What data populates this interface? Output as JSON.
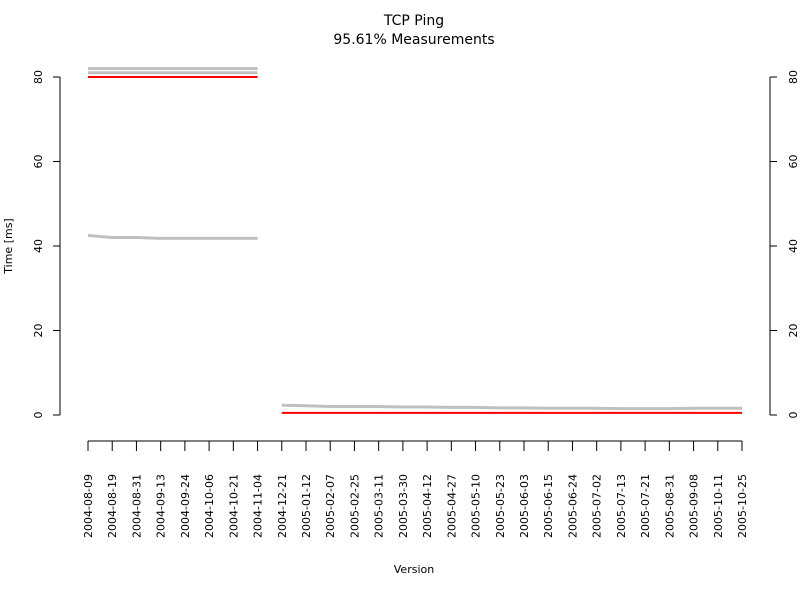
{
  "chart_data": {
    "type": "line",
    "title": "TCP Ping",
    "subtitle": "95.61% Measurements",
    "x_label": "Version",
    "y_label": "Time [ms]",
    "categories": [
      "2004-08-09",
      "2004-08-19",
      "2004-08-31",
      "2004-09-13",
      "2004-09-24",
      "2004-10-06",
      "2004-10-21",
      "2004-11-04",
      "2004-12-21",
      "2005-01-12",
      "2005-02-07",
      "2005-02-25",
      "2005-03-11",
      "2005-03-30",
      "2005-04-12",
      "2005-04-27",
      "2005-05-10",
      "2005-05-23",
      "2005-06-03",
      "2005-06-15",
      "2005-06-24",
      "2005-07-02",
      "2005-07-13",
      "2005-07-21",
      "2005-08-31",
      "2005-09-08",
      "2005-10-11",
      "2005-10-25"
    ],
    "series": [
      {
        "color": "#c0c0c0",
        "values": [
          82,
          82,
          82,
          82,
          82,
          82,
          82,
          82,
          null,
          null,
          null,
          null,
          null,
          null,
          null,
          null,
          null,
          null,
          null,
          null,
          null,
          null,
          null,
          null,
          null,
          null,
          null,
          null
        ]
      },
      {
        "color": "#c0c0c0",
        "values": [
          81,
          81,
          81,
          81,
          81,
          81,
          81,
          81,
          null,
          null,
          null,
          null,
          null,
          null,
          null,
          null,
          null,
          null,
          null,
          null,
          null,
          null,
          null,
          null,
          null,
          null,
          null,
          null
        ]
      },
      {
        "color": "#c0c0c0",
        "values": [
          42.5,
          42,
          42,
          41.8,
          41.8,
          41.8,
          41.8,
          41.8,
          null,
          null,
          null,
          null,
          null,
          null,
          null,
          null,
          null,
          null,
          null,
          null,
          null,
          null,
          null,
          null,
          null,
          null,
          null,
          null
        ]
      },
      {
        "color": "#c0c0c0",
        "values": [
          null,
          null,
          null,
          null,
          null,
          null,
          null,
          null,
          2.3,
          2.2,
          2,
          2,
          2,
          1.9,
          1.9,
          1.8,
          1.8,
          1.7,
          1.7,
          1.6,
          1.6,
          1.6,
          1.5,
          1.5,
          1.5,
          1.6,
          1.6,
          1.6
        ]
      },
      {
        "color": "#ff0000",
        "values": [
          80,
          80,
          80,
          80,
          80,
          80,
          80,
          80,
          null,
          null,
          null,
          null,
          null,
          null,
          null,
          null,
          null,
          null,
          null,
          null,
          null,
          null,
          null,
          null,
          null,
          null,
          null,
          null
        ]
      },
      {
        "color": "#ff0000",
        "values": [
          null,
          null,
          null,
          null,
          null,
          null,
          null,
          null,
          0.5,
          0.5,
          0.5,
          0.5,
          0.5,
          0.5,
          0.5,
          0.5,
          0.5,
          0.5,
          0.5,
          0.5,
          0.5,
          0.5,
          0.5,
          0.5,
          0.5,
          0.5,
          0.5,
          0.5
        ]
      }
    ],
    "ylim": [
      0,
      80
    ],
    "yticks": [
      0,
      20,
      40,
      60,
      80
    ],
    "y2lim": [
      0,
      80
    ],
    "y2ticks": [
      0,
      20,
      40,
      60,
      80
    ]
  }
}
